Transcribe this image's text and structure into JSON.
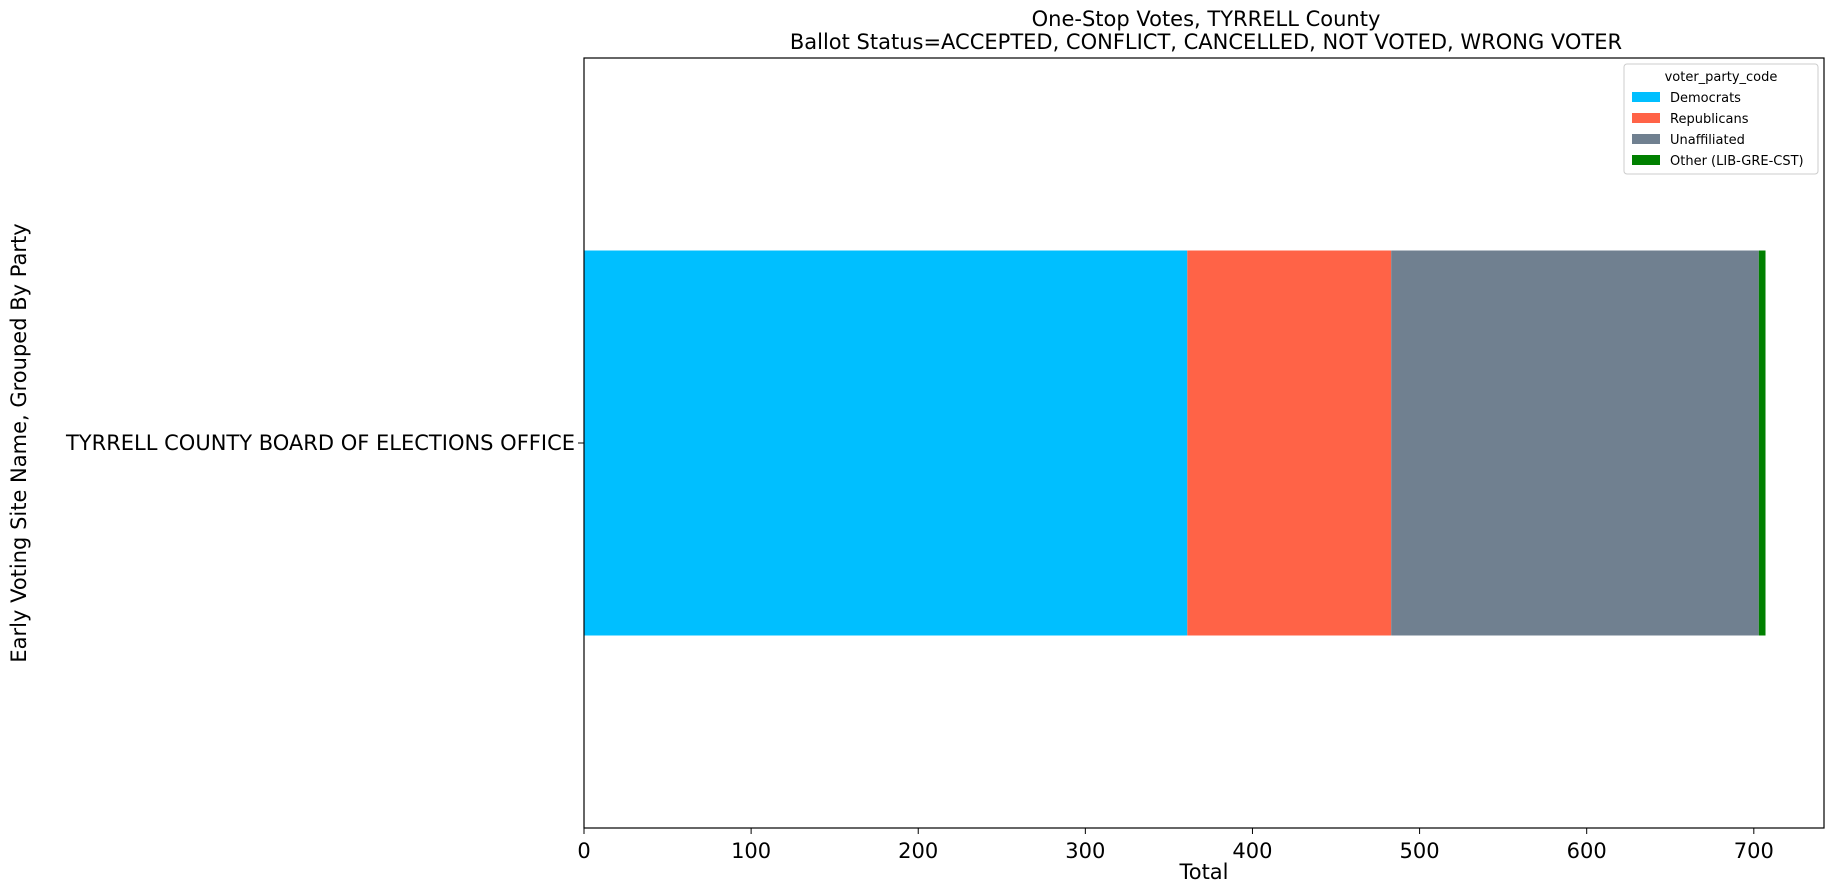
{
  "chart_data": {
    "type": "bar",
    "orientation": "horizontal",
    "stacked": true,
    "title": "One-Stop Votes, TYRRELL County",
    "subtitle": "Ballot Status=ACCEPTED, CONFLICT, CANCELLED, NOT VOTED, WRONG VOTER",
    "xlabel": "Total",
    "ylabel": "Early Voting Site Name, Grouped By Party",
    "categories": [
      "TYRRELL COUNTY BOARD OF ELECTIONS OFFICE"
    ],
    "xlim": [
      0,
      742
    ],
    "xticks": [
      0,
      100,
      200,
      300,
      400,
      500,
      600,
      700
    ],
    "grid": false,
    "legend": {
      "title": "voter_party_code",
      "position": "top-right"
    },
    "series": [
      {
        "name": "Democrats",
        "values": [
          361
        ],
        "color": "#00BFFF"
      },
      {
        "name": "Republicans",
        "values": [
          122
        ],
        "color": "#FF6347"
      },
      {
        "name": "Unaffiliated",
        "values": [
          220
        ],
        "color": "#708090"
      },
      {
        "name": "Other (LIB-GRE-CST)",
        "values": [
          4
        ],
        "color": "#008000"
      }
    ]
  }
}
